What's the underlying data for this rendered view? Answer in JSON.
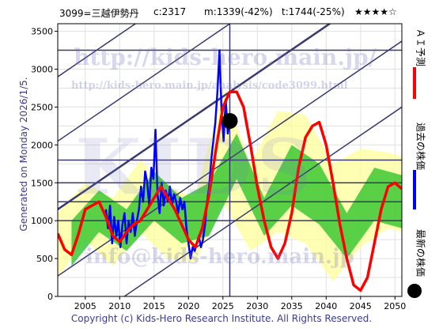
{
  "header": {
    "code_name": "3099=三越伊勢丹",
    "current": "c:2317",
    "min": "m:1339(-42%)",
    "target": "t:1744(-25%)",
    "rating": "★★★★☆"
  },
  "side_text": "Generated on Monday 2026/1/5.",
  "watermark": {
    "url_big": "http://kids-hero.main.jp/",
    "url_small": "http://kids-hero.main.jp/analysis/code3099.html",
    "email": "info@kids-hero.main.jp",
    "logo": "KIDS"
  },
  "legend": [
    {
      "label": "ＡＩ予測",
      "color": "#ff0000",
      "icon": "red-line"
    },
    {
      "label": "過去の株価",
      "color": "#0000ff",
      "icon": "blue-line"
    },
    {
      "label": "最新の株価",
      "color": "#000000",
      "icon": "black-dot"
    }
  ],
  "footer": "Copyright (c) Kids-Hero Research Institute. All Rights Reserved.",
  "colors": {
    "plot_bg": "#ffffff",
    "grid": "#e0e0e0",
    "band_line": "#3a3a6e",
    "green": "#22c022",
    "yellow_fill": "#ffff99",
    "actual": "#0000ff",
    "forecast": "#ff0000"
  },
  "chart_data": {
    "type": "line",
    "title": "",
    "xlabel": "",
    "ylabel": "",
    "xlim": [
      2001,
      2051
    ],
    "ylim": [
      0,
      3600
    ],
    "x_ticks": [
      2005,
      2010,
      2015,
      2020,
      2025,
      2030,
      2035,
      2040,
      2045,
      2050
    ],
    "y_ticks": [
      0,
      500,
      1000,
      1500,
      2000,
      2500,
      3000,
      3500
    ],
    "grid": true,
    "horizontal_levels": [
      3250,
      1800,
      1500,
      1250,
      1000
    ],
    "trend_channel": {
      "slope_per_year": 62,
      "intercepts_at_2001": [
        -600,
        270,
        1150,
        2050,
        2900
      ]
    },
    "latest_marker": {
      "x": 2026.0,
      "y": 2317
    },
    "vertical_marker_x": 2026.0,
    "series": [
      {
        "role": "past-price",
        "color": "#0000ff",
        "x": [
          2008.0,
          2008.3,
          2008.6,
          2008.9,
          2009.2,
          2009.5,
          2009.8,
          2010.1,
          2010.4,
          2010.7,
          2011.0,
          2011.3,
          2011.6,
          2011.9,
          2012.2,
          2012.5,
          2012.8,
          2013.1,
          2013.4,
          2013.7,
          2014.0,
          2014.3,
          2014.6,
          2014.9,
          2015.2,
          2015.5,
          2015.8,
          2016.1,
          2016.4,
          2016.7,
          2017.0,
          2017.3,
          2017.6,
          2017.9,
          2018.2,
          2018.5,
          2018.8,
          2019.1,
          2019.4,
          2019.7,
          2020.0,
          2020.3,
          2020.6,
          2020.9,
          2021.2,
          2021.5,
          2021.8,
          2022.1,
          2022.4,
          2022.7,
          2023.0,
          2023.3,
          2023.6,
          2023.9,
          2024.2,
          2024.5,
          2024.8,
          2025.1,
          2025.4,
          2025.7,
          2026.0
        ],
        "y": [
          1150,
          900,
          1200,
          700,
          1050,
          800,
          1000,
          650,
          950,
          1100,
          700,
          1000,
          850,
          1100,
          800,
          1000,
          1150,
          1450,
          1250,
          1650,
          1500,
          1200,
          1700,
          1550,
          2200,
          1350,
          1100,
          1500,
          1200,
          1400,
          1250,
          1450,
          1200,
          1350,
          1250,
          1100,
          1300,
          1150,
          1250,
          900,
          700,
          500,
          650,
          600,
          700,
          800,
          650,
          750,
          950,
          1250,
          1450,
          1800,
          2050,
          2300,
          2700,
          3250,
          2450,
          2050,
          2600,
          2150,
          2317
        ]
      },
      {
        "role": "forecast",
        "color": "#ff0000",
        "x": [
          2001.0,
          2002.0,
          2003.0,
          2004.0,
          2005.0,
          2006.0,
          2007.0,
          2008.0,
          2009.0,
          2010.0,
          2011.0,
          2012.0,
          2013.0,
          2014.0,
          2015.0,
          2016.0,
          2017.0,
          2018.0,
          2019.0,
          2020.0,
          2021.0,
          2022.0,
          2023.0,
          2024.0,
          2025.0,
          2026.0,
          2027.0,
          2028.0,
          2029.0,
          2030.0,
          2031.0,
          2032.0,
          2033.0,
          2034.0,
          2035.0,
          2036.0,
          2037.0,
          2038.0,
          2039.0,
          2040.0,
          2041.0,
          2042.0,
          2043.0,
          2044.0,
          2045.0,
          2046.0,
          2047.0,
          2048.0,
          2049.0,
          2050.0,
          2051.0
        ],
        "y": [
          830,
          620,
          550,
          820,
          1150,
          1200,
          1250,
          1050,
          800,
          720,
          850,
          950,
          1000,
          1150,
          1300,
          1450,
          1300,
          1150,
          950,
          750,
          650,
          900,
          1350,
          1950,
          2500,
          2700,
          2700,
          2500,
          2000,
          1450,
          1000,
          650,
          500,
          700,
          1100,
          1700,
          2100,
          2250,
          2300,
          2000,
          1500,
          950,
          500,
          150,
          80,
          250,
          700,
          1150,
          1450,
          1500,
          1420
        ]
      }
    ],
    "green_band": {
      "x": [
        2003,
        2007,
        2011,
        2015,
        2019,
        2023,
        2027,
        2031,
        2035,
        2039,
        2043,
        2047,
        2051
      ],
      "lower": [
        400,
        850,
        600,
        1000,
        700,
        800,
        1550,
        800,
        1200,
        950,
        500,
        1000,
        900
      ],
      "upper": [
        1000,
        1400,
        1150,
        1650,
        1300,
        1500,
        2150,
        1300,
        2000,
        1750,
        1100,
        1700,
        1600
      ]
    },
    "yellow_band": {
      "x": [
        2001,
        2005,
        2009,
        2013,
        2017,
        2021,
        2025,
        2029,
        2033,
        2037,
        2041,
        2045,
        2049,
        2051
      ],
      "lower": [
        250,
        750,
        400,
        850,
        500,
        450,
        1250,
        600,
        850,
        700,
        200,
        650,
        900,
        850
      ],
      "upper": [
        1100,
        1500,
        1300,
        1800,
        1450,
        1300,
        2750,
        1750,
        2450,
        2400,
        1750,
        1950,
        1900,
        1850
      ]
    }
  }
}
